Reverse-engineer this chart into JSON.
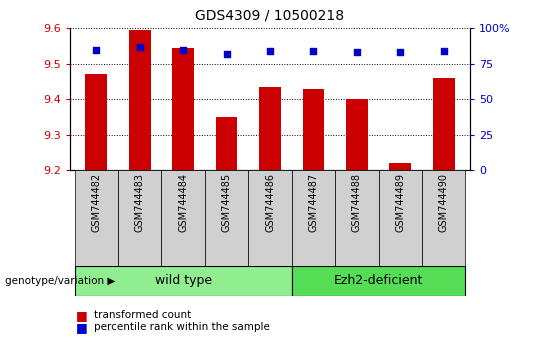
{
  "title": "GDS4309 / 10500218",
  "samples": [
    "GSM744482",
    "GSM744483",
    "GSM744484",
    "GSM744485",
    "GSM744486",
    "GSM744487",
    "GSM744488",
    "GSM744489",
    "GSM744490"
  ],
  "transformed_count": [
    9.47,
    9.595,
    9.545,
    9.35,
    9.435,
    9.43,
    9.4,
    9.22,
    9.46
  ],
  "percentile_rank": [
    85,
    87,
    85,
    82,
    84,
    84,
    83,
    83,
    84
  ],
  "ylim_left": [
    9.2,
    9.6
  ],
  "ylim_right": [
    0,
    100
  ],
  "yticks_left": [
    9.2,
    9.3,
    9.4,
    9.5,
    9.6
  ],
  "yticks_right": [
    0,
    25,
    50,
    75,
    100
  ],
  "bar_color": "#CC0000",
  "dot_color": "#0000CC",
  "bar_bottom": 9.2,
  "wild_type_indices": [
    0,
    1,
    2,
    3,
    4
  ],
  "ezh2_indices": [
    5,
    6,
    7,
    8
  ],
  "wild_type_label": "wild type",
  "ezh2_label": "Ezh2-deficient",
  "genotype_label": "genotype/variation",
  "legend_bar_label": "transformed count",
  "legend_dot_label": "percentile rank within the sample",
  "wild_type_color": "#90EE90",
  "ezh2_color": "#55DD55",
  "tick_label_color_left": "#CC0000",
  "tick_label_color_right": "#0000CC",
  "bar_width": 0.5,
  "gray_box_color": "#D0D0D0"
}
